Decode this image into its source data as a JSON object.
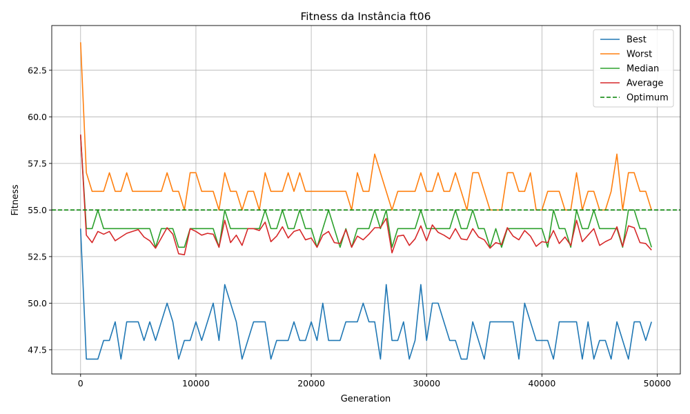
{
  "chart_data": {
    "type": "line",
    "title": "Fitness da Instância ft06",
    "xlabel": "Generation",
    "ylabel": "Fitness",
    "xlim": [
      -2500,
      52000
    ],
    "ylim": [
      46.2,
      64.9
    ],
    "xticks": [
      0,
      10000,
      20000,
      30000,
      40000,
      50000
    ],
    "xtick_labels": [
      "0",
      "10000",
      "20000",
      "30000",
      "40000",
      "50000"
    ],
    "yticks": [
      47.5,
      50.0,
      52.5,
      55.0,
      57.5,
      60.0,
      62.5
    ],
    "ytick_labels": [
      "47.5",
      "50.0",
      "52.5",
      "55.0",
      "57.5",
      "60.0",
      "62.5"
    ],
    "grid": true,
    "legend_position": "top-right",
    "x": [
      0,
      500,
      1000,
      1500,
      2000,
      2500,
      3000,
      3500,
      4000,
      4500,
      5000,
      5500,
      6000,
      6500,
      7000,
      7500,
      8000,
      8500,
      9000,
      9500,
      10000,
      10500,
      11000,
      11500,
      12000,
      12500,
      13000,
      13500,
      14000,
      14500,
      15000,
      15500,
      16000,
      16500,
      17000,
      17500,
      18000,
      18500,
      19000,
      19500,
      20000,
      20500,
      21000,
      21500,
      22000,
      22500,
      23000,
      23500,
      24000,
      24500,
      25000,
      25500,
      26000,
      26500,
      27000,
      27500,
      28000,
      28500,
      29000,
      29500,
      30000,
      30500,
      31000,
      31500,
      32000,
      32500,
      33000,
      33500,
      34000,
      34500,
      35000,
      35500,
      36000,
      36500,
      37000,
      37500,
      38000,
      38500,
      39000,
      39500,
      40000,
      40500,
      41000,
      41500,
      42000,
      42500,
      43000,
      43500,
      44000,
      44500,
      45000,
      45500,
      46000,
      46500,
      47000,
      47500,
      48000,
      48500,
      49000,
      49500
    ],
    "series": [
      {
        "name": "Best",
        "color": "#1f77b4",
        "dashed": false,
        "values": [
          54,
          47,
          47,
          47,
          48,
          48,
          49,
          47,
          49,
          49,
          49,
          48,
          49,
          48,
          49,
          50,
          49,
          47,
          48,
          48,
          49,
          48,
          49,
          50,
          48,
          51,
          50,
          49,
          47,
          48,
          49,
          49,
          49,
          47,
          48,
          48,
          48,
          49,
          48,
          48,
          49,
          48,
          50,
          48,
          48,
          48,
          49,
          49,
          49,
          50,
          49,
          49,
          47,
          51,
          48,
          48,
          49,
          47,
          48,
          51,
          48,
          50,
          50,
          49,
          48,
          48,
          47,
          47,
          49,
          48,
          47,
          49,
          49,
          49,
          49,
          49,
          47,
          50,
          49,
          48,
          48,
          48,
          47,
          49,
          49,
          49,
          49,
          47,
          49,
          47,
          48,
          48,
          47,
          49,
          48,
          47,
          49,
          49,
          48,
          49
        ]
      },
      {
        "name": "Worst",
        "color": "#ff7f0e",
        "dashed": false,
        "values": [
          64,
          57,
          56,
          56,
          56,
          57,
          56,
          56,
          57,
          56,
          56,
          56,
          56,
          56,
          56,
          57,
          56,
          56,
          55,
          57,
          57,
          56,
          56,
          56,
          55,
          57,
          56,
          56,
          55,
          56,
          56,
          55,
          57,
          56,
          56,
          56,
          57,
          56,
          57,
          56,
          56,
          56,
          56,
          56,
          56,
          56,
          56,
          55,
          57,
          56,
          56,
          58,
          57,
          56,
          55,
          56,
          56,
          56,
          56,
          57,
          56,
          56,
          57,
          56,
          56,
          57,
          56,
          55,
          57,
          57,
          56,
          55,
          55,
          55,
          57,
          57,
          56,
          56,
          57,
          55,
          55,
          56,
          56,
          56,
          55,
          55,
          57,
          55,
          56,
          56,
          55,
          55,
          56,
          58,
          55,
          57,
          57,
          56,
          56,
          55
        ]
      },
      {
        "name": "Median",
        "color": "#2ca02c",
        "dashed": false,
        "values": [
          59,
          54,
          54,
          55,
          54,
          54,
          54,
          54,
          54,
          54,
          54,
          54,
          54,
          53,
          54,
          54,
          54,
          53,
          53,
          54,
          54,
          54,
          54,
          54,
          53,
          55,
          54,
          54,
          54,
          54,
          54,
          54,
          55,
          54,
          54,
          55,
          54,
          54,
          55,
          54,
          54,
          53,
          54,
          55,
          54,
          53,
          54,
          53,
          54,
          54,
          54,
          55,
          54,
          55,
          53,
          54,
          54,
          54,
          54,
          55,
          54,
          54,
          54,
          54,
          54,
          55,
          54,
          54,
          55,
          54,
          54,
          53,
          54,
          53,
          54,
          54,
          54,
          54,
          54,
          54,
          54,
          53,
          55,
          54,
          54,
          53,
          55,
          54,
          54,
          55,
          54,
          54,
          54,
          54,
          53,
          55,
          55,
          54,
          54,
          53
        ]
      },
      {
        "name": "Average",
        "color": "#d62728",
        "dashed": false,
        "values": [
          59.05,
          53.65,
          53.25,
          53.85,
          53.7,
          53.85,
          53.35,
          53.55,
          53.75,
          53.85,
          53.95,
          53.55,
          53.35,
          52.95,
          53.5,
          54.05,
          53.7,
          52.65,
          52.6,
          54.0,
          53.85,
          53.65,
          53.75,
          53.7,
          53.0,
          54.45,
          53.25,
          53.65,
          53.1,
          54.0,
          54.0,
          53.9,
          54.35,
          53.3,
          53.6,
          54.1,
          53.5,
          53.85,
          53.95,
          53.4,
          53.5,
          53.0,
          53.65,
          53.85,
          53.25,
          53.2,
          53.95,
          53.0,
          53.6,
          53.4,
          53.7,
          54.05,
          54.05,
          54.55,
          52.7,
          53.6,
          53.65,
          53.1,
          53.45,
          54.15,
          53.35,
          54.2,
          53.8,
          53.65,
          53.45,
          54.0,
          53.45,
          53.4,
          54.0,
          53.55,
          53.4,
          52.95,
          53.25,
          53.15,
          54.05,
          53.6,
          53.4,
          53.9,
          53.6,
          53.05,
          53.3,
          53.25,
          53.9,
          53.2,
          53.55,
          53.1,
          54.45,
          53.3,
          53.65,
          54.0,
          53.1,
          53.3,
          53.45,
          54.1,
          53.05,
          54.15,
          54.05,
          53.25,
          53.2,
          52.85
        ]
      },
      {
        "name": "Optimum",
        "color": "#008000",
        "dashed": true,
        "constant": 55
      }
    ]
  }
}
